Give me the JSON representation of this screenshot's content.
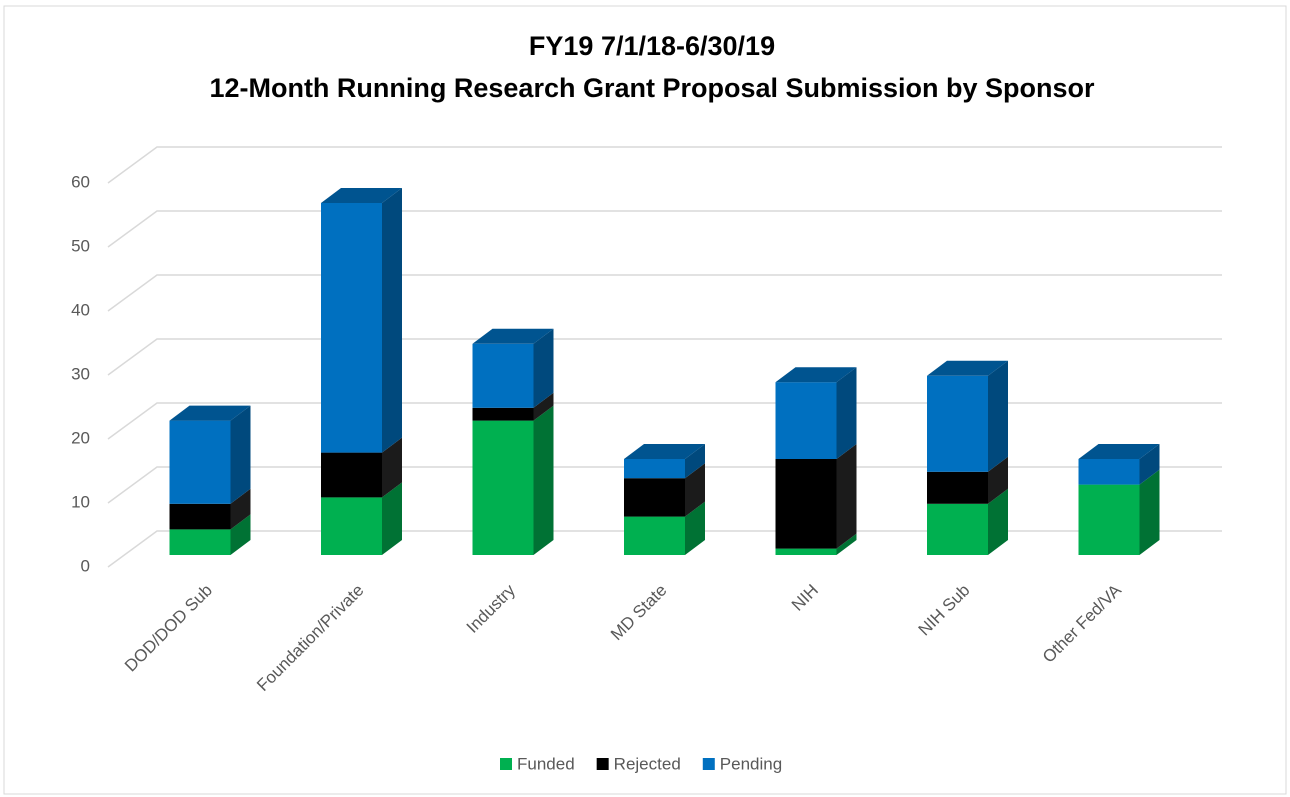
{
  "chart_data": {
    "type": "bar3d_stacked",
    "title": "FY19 7/1/18-6/30/19",
    "subtitle": "12-Month Running Research Grant Proposal Submission by Sponsor",
    "categories": [
      "DOD/DOD Sub",
      "Foundation/Private",
      "Industry",
      "MD State",
      "NIH",
      "NIH Sub",
      "Other Fed/VA"
    ],
    "series": [
      {
        "name": "Funded",
        "color": "#00b050",
        "values": [
          4,
          9,
          21,
          6,
          1,
          8,
          11
        ]
      },
      {
        "name": "Rejected",
        "color": "#000000",
        "values": [
          4,
          7,
          2,
          6,
          14,
          5,
          0
        ]
      },
      {
        "name": "Pending",
        "color": "#0070c0",
        "values": [
          13,
          39,
          10,
          3,
          12,
          15,
          4
        ]
      }
    ],
    "ylim": [
      0,
      60
    ],
    "yticks": [
      0,
      10,
      20,
      30,
      40,
      50,
      60
    ],
    "grid": true,
    "legend": "bottom"
  }
}
